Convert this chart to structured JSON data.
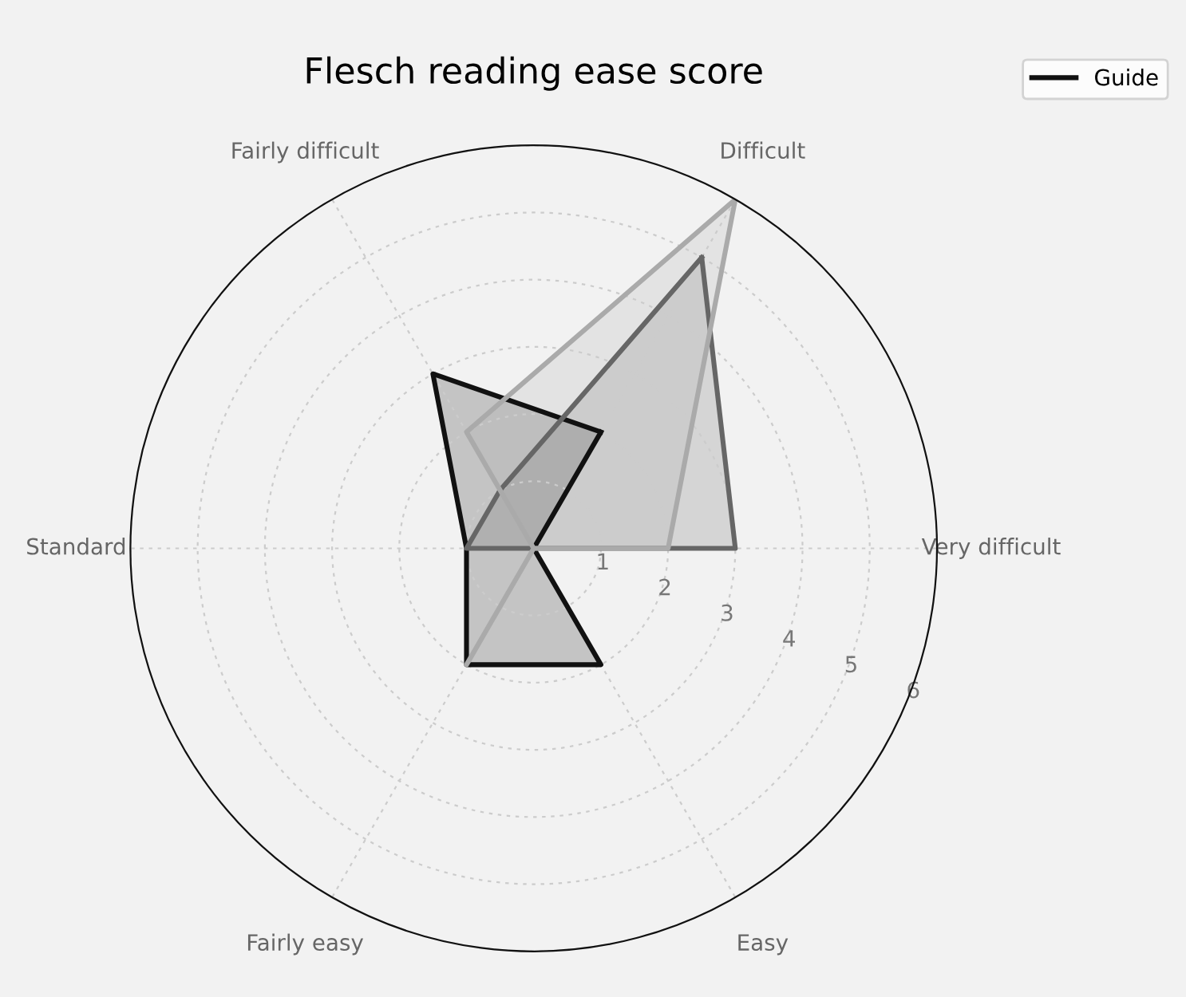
{
  "chart_data": {
    "type": "radar",
    "title": "Flesch reading ease score",
    "categories": [
      "Difficult",
      "Very difficult",
      "Easy",
      "Fairly easy",
      "Standard",
      "Fairly difficult"
    ],
    "series": [
      {
        "name": "Guide",
        "color": "#111111",
        "values": [
          2,
          0,
          2,
          2,
          1,
          3
        ]
      },
      {
        "color": "#666666",
        "values": [
          5,
          3,
          0,
          0,
          1,
          1
        ]
      },
      {
        "color": "#aaaaaa",
        "values": [
          6,
          2,
          0,
          2,
          0,
          2
        ]
      }
    ],
    "ylim": [
      0,
      6
    ],
    "yticks": [
      1,
      2,
      3,
      4,
      5,
      6
    ],
    "grid": true,
    "legend": "top right"
  }
}
